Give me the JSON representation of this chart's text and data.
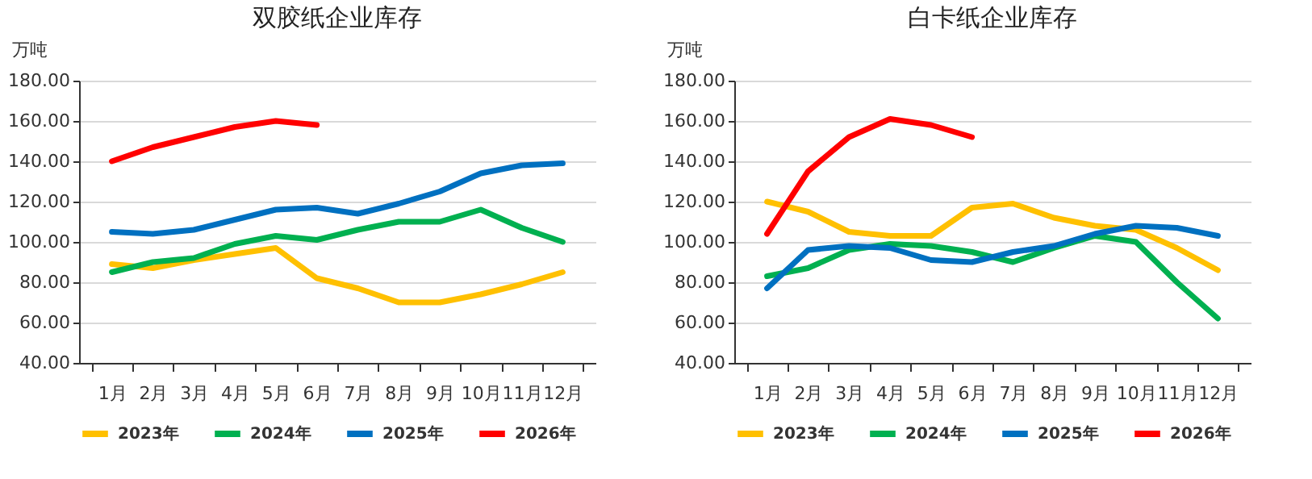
{
  "chart_data": [
    {
      "type": "line",
      "title": "双胶纸企业库存",
      "ylabel": "万吨",
      "categories": [
        "1月",
        "2月",
        "3月",
        "4月",
        "5月",
        "6月",
        "7月",
        "8月",
        "9月",
        "10月",
        "11月",
        "12月"
      ],
      "ylim": [
        40,
        180
      ],
      "yticks": [
        {
          "value": 40,
          "label": "40.00"
        },
        {
          "value": 60,
          "label": "60.00"
        },
        {
          "value": 80,
          "label": "80.00"
        },
        {
          "value": 100,
          "label": "100.00"
        },
        {
          "value": 120,
          "label": "120.00"
        },
        {
          "value": 140,
          "label": "140.00"
        },
        {
          "value": 160,
          "label": "160.00"
        },
        {
          "value": 180,
          "label": "180.00"
        }
      ],
      "grid": "y",
      "legend": "bottom",
      "marker": "none",
      "series": [
        {
          "name": "2023年",
          "color": "#ffc000",
          "values": [
            89,
            87,
            91,
            94,
            97,
            82,
            77,
            70,
            70,
            74,
            79,
            85
          ]
        },
        {
          "name": "2024年",
          "color": "#00b050",
          "values": [
            85,
            90,
            92,
            99,
            103,
            101,
            106,
            110,
            110,
            116,
            107,
            100
          ]
        },
        {
          "name": "2025年",
          "color": "#0070c0",
          "values": [
            105,
            104,
            106,
            111,
            116,
            117,
            114,
            119,
            125,
            134,
            138,
            139
          ]
        },
        {
          "name": "2026年",
          "color": "#ff0000",
          "values": [
            140,
            147,
            152,
            157,
            160,
            158,
            null,
            null,
            null,
            null,
            null,
            null
          ]
        }
      ]
    },
    {
      "type": "line",
      "title": "白卡纸企业库存",
      "ylabel": "万吨",
      "categories": [
        "1月",
        "2月",
        "3月",
        "4月",
        "5月",
        "6月",
        "7月",
        "8月",
        "9月",
        "10月",
        "11月",
        "12月"
      ],
      "ylim": [
        40,
        180
      ],
      "yticks": [
        {
          "value": 40,
          "label": "40.00"
        },
        {
          "value": 60,
          "label": "60.00"
        },
        {
          "value": 80,
          "label": "80.00"
        },
        {
          "value": 100,
          "label": "100.00"
        },
        {
          "value": 120,
          "label": "120.00"
        },
        {
          "value": 140,
          "label": "140.00"
        },
        {
          "value": 160,
          "label": "160.00"
        },
        {
          "value": 180,
          "label": "180.00"
        }
      ],
      "grid": "y",
      "legend": "bottom",
      "marker": "none",
      "series": [
        {
          "name": "2023年",
          "color": "#ffc000",
          "values": [
            120,
            115,
            105,
            103,
            103,
            117,
            119,
            112,
            108,
            106,
            97,
            86
          ]
        },
        {
          "name": "2024年",
          "color": "#00b050",
          "values": [
            83,
            87,
            96,
            99,
            98,
            95,
            90,
            97,
            103,
            100,
            80,
            62
          ]
        },
        {
          "name": "2025年",
          "color": "#0070c0",
          "values": [
            77,
            96,
            98,
            97,
            91,
            90,
            95,
            98,
            104,
            108,
            107,
            103
          ]
        },
        {
          "name": "2026年",
          "color": "#ff0000",
          "values": [
            104,
            135,
            152,
            161,
            158,
            152,
            null,
            null,
            null,
            null,
            null,
            null
          ]
        }
      ]
    }
  ]
}
